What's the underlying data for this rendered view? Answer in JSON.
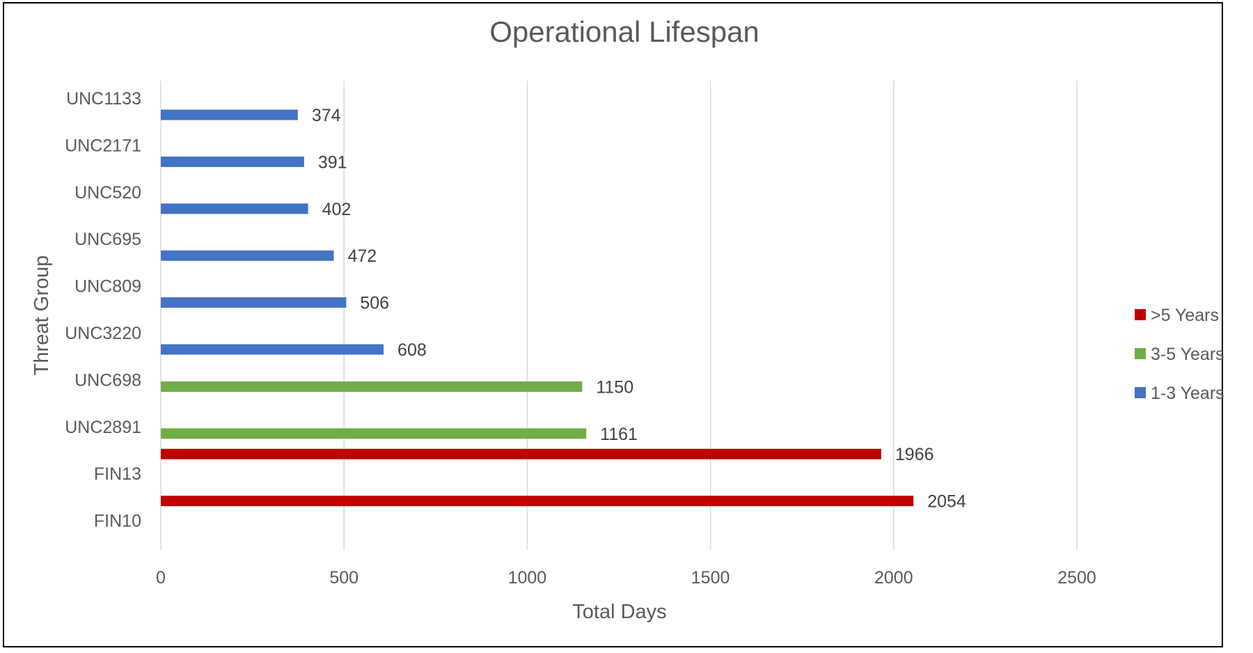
{
  "chart_data": {
    "type": "bar",
    "orientation": "horizontal",
    "title": "Operational Lifespan",
    "xlabel": "Total Days",
    "ylabel": "Threat Group",
    "xlim": [
      0,
      2500
    ],
    "xticks": [
      0,
      500,
      1000,
      1500,
      2000,
      2500
    ],
    "grid": "vertical",
    "legend_position": "right",
    "categories": [
      "UNC1133",
      "UNC2171",
      "UNC520",
      "UNC695",
      "UNC809",
      "UNC3220",
      "UNC698",
      "UNC2891",
      "FIN13",
      "FIN10"
    ],
    "series": [
      {
        "name": "1-3 Years",
        "color": "#4472C4",
        "values": [
          374,
          391,
          402,
          472,
          506,
          608,
          null,
          null,
          null,
          null
        ]
      },
      {
        "name": "3-5 Years",
        "color": "#70AD47",
        "values": [
          null,
          null,
          null,
          null,
          null,
          null,
          1150,
          1161,
          null,
          null
        ]
      },
      {
        "name": ">5 Years",
        "color": "#C00000",
        "values": [
          null,
          null,
          null,
          null,
          null,
          null,
          null,
          null,
          1966,
          2054
        ]
      }
    ],
    "legend_order": [
      ">5 Years",
      "3-5 Years",
      "1-3 Years"
    ],
    "data_labels": true
  }
}
